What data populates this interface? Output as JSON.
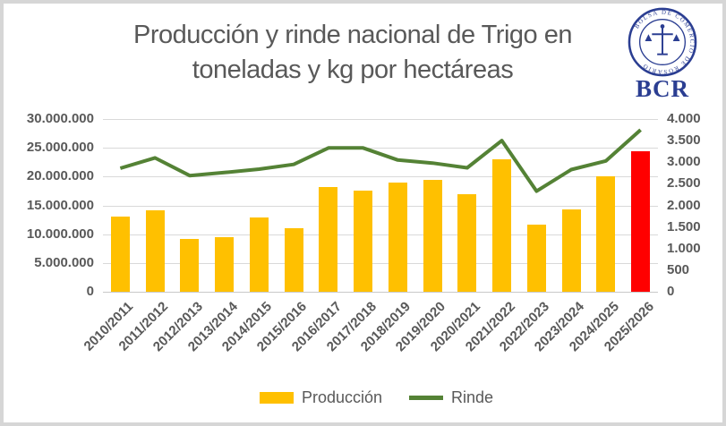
{
  "title": {
    "full": "Producción y rinde nacional de Trigo  en toneladas y kg por hectáreas",
    "line1": "Producción y rinde nacional de Trigo  en",
    "line2": "toneladas y kg por hectáreas"
  },
  "logo": {
    "abbr": "BCR",
    "seal_text": "BOLSA DE COMERCIO DE ROSARIO",
    "color": "#2B3E92"
  },
  "legend": {
    "items": [
      {
        "label": "Producción",
        "type": "bar",
        "color": "#FFC000"
      },
      {
        "label": "Rinde",
        "type": "line",
        "color": "#548235"
      }
    ],
    "position": "bottom"
  },
  "chart_data": {
    "type": "combo",
    "title": "Producción y rinde nacional de Trigo  en toneladas y kg por hectáreas",
    "grid": true,
    "categories": [
      "2010/2011",
      "2011/2012",
      "2012/2013",
      "2013/2014",
      "2014/2015",
      "2015/2016",
      "2016/2017",
      "2017/2018",
      "2018/2019",
      "2019/2020",
      "2020/2021",
      "2021/2022",
      "2022/2023",
      "2023/2024",
      "2024/2025",
      "2025/2026"
    ],
    "series": [
      {
        "name": "Producción",
        "type": "bar",
        "axis": "left",
        "unit": "toneladas",
        "color": "#FFC000",
        "highlight": {
          "index": 15,
          "color": "#FF0000"
        },
        "values": [
          13000000,
          14100000,
          9200000,
          9500000,
          12900000,
          11000000,
          18200000,
          17500000,
          18900000,
          19400000,
          17000000,
          23000000,
          11700000,
          14300000,
          20000000,
          24400000
        ]
      },
      {
        "name": "Rinde",
        "type": "line",
        "axis": "right",
        "unit": "kg por hectárea",
        "color": "#548235",
        "values": [
          2860,
          3100,
          2690,
          2760,
          2840,
          2950,
          3330,
          3330,
          3050,
          2980,
          2870,
          3500,
          2330,
          2830,
          3030,
          3750
        ]
      }
    ],
    "left_axis": {
      "min": 0,
      "max": 30000000,
      "step": 5000000,
      "tick_labels": [
        "30.000.000",
        "25.000.000",
        "20.000.000",
        "15.000.000",
        "10.000.000",
        "5.000.000",
        "0"
      ]
    },
    "right_axis": {
      "min": 0,
      "max": 4000,
      "step": 500,
      "tick_labels": [
        "4.000",
        "3.500",
        "3.000",
        "2.500",
        "2.000",
        "1.500",
        "1.000",
        "500",
        "0"
      ]
    },
    "grid_color": "#D9D9D9",
    "text_color": "#595959"
  }
}
